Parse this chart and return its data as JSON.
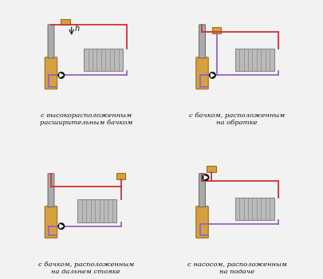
{
  "background_color": "#f0f0f0",
  "captions": [
    [
      "с высокорасположенным",
      "расширительным бачком"
    ],
    [
      "с бачком, расположенным",
      "на обратке"
    ],
    [
      "с бачком, расположенным",
      "на дальнем стояке"
    ],
    [
      "с насосом, расположенным",
      "на подаче"
    ]
  ],
  "pipe_red": "#cc3333",
  "pipe_purple": "#9966bb",
  "boiler_body": "#d4a040",
  "boiler_pipe_color": "#aaaaaa",
  "tank_color": "#d4a040",
  "radiator_color": "#bbbbbb",
  "radiator_border": "#888888",
  "pump_color": "#222222",
  "h_annotation": "h"
}
